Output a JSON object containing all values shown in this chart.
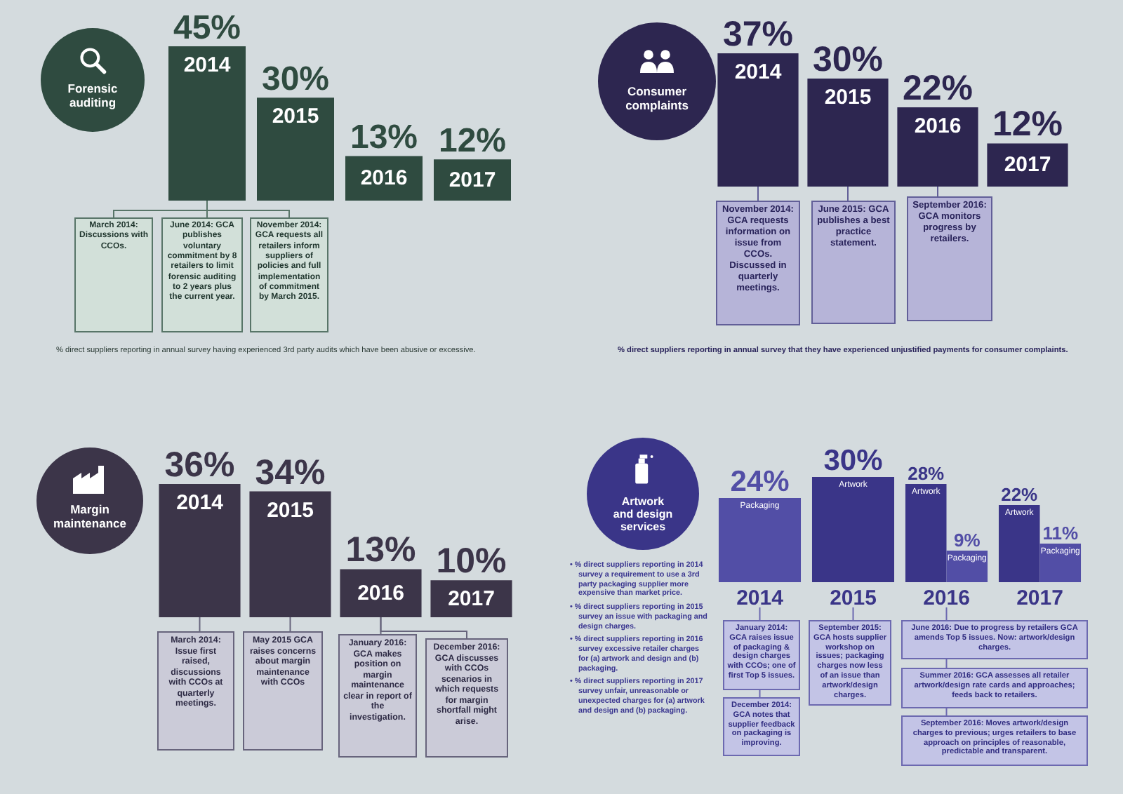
{
  "chart_data": [
    {
      "type": "bar",
      "title": "Forensic auditing",
      "categories": [
        "2014",
        "2015",
        "2016",
        "2017"
      ],
      "values": [
        45,
        30,
        13,
        12
      ],
      "value_labels": [
        "45%",
        "30%",
        "13%",
        "12%"
      ],
      "color": "#2f4b40",
      "tick_labels": "x",
      "annotations": [
        "March 2014: Discussions with CCOs.",
        "June 2014: GCA publishes voluntary commitment by 8 retailers to limit forensic auditing to 2 years plus the current year.",
        "November 2014: GCA requests all retailers inform suppliers of policies and full implementation of commitment by March 2015.",
        "% direct suppliers reporting in annual survey having experienced 3rd party audits which have been abusive or excessive."
      ]
    },
    {
      "type": "bar",
      "title": "Consumer complaints",
      "categories": [
        "2014",
        "2015",
        "2016",
        "2017"
      ],
      "values": [
        37,
        30,
        22,
        12
      ],
      "value_labels": [
        "37%",
        "30%",
        "22%",
        "12%"
      ],
      "color": "#2d2650",
      "tick_labels": "x",
      "annotations": [
        "November 2014: GCA requests information on issue from CCOs. Discussed in quarterly meetings.",
        "June 2015: GCA publishes a best practice statement.",
        "September 2016: GCA monitors progress by retailers.",
        "% direct suppliers reporting in annual survey that they have experienced unjustified payments for consumer complaints."
      ]
    },
    {
      "type": "bar",
      "title": "Margin maintenance",
      "categories": [
        "2014",
        "2015",
        "2016",
        "2017"
      ],
      "values": [
        36,
        34,
        13,
        10
      ],
      "value_labels": [
        "36%",
        "34%",
        "13%",
        "10%"
      ],
      "color": "#3c3549",
      "tick_labels": "x",
      "annotations": [
        "March 2014: Issue first raised, discussions with CCOs at quarterly meetings.",
        "May 2015 GCA raises concerns about margin maintenance with CCOs",
        "January 2016: GCA makes position on margin maintenance clear in report of the investigation.",
        "December 2016: GCA discusses with CCOs scenarios in which requests for margin shortfall might arise."
      ]
    },
    {
      "type": "bar",
      "title": "Artwork and design services",
      "categories": [
        "2014",
        "2015",
        "2016",
        "2017"
      ],
      "tick_labels": "x",
      "series": [
        {
          "name": "Artwork",
          "color": "#3a3588",
          "values": [
            null,
            30,
            28,
            22
          ],
          "value_labels": [
            null,
            "30%",
            "28%",
            "22%"
          ]
        },
        {
          "name": "Packaging",
          "color": "#524ea6",
          "values": [
            24,
            null,
            9,
            11
          ],
          "value_labels": [
            "24%",
            null,
            "9%",
            "11%"
          ]
        }
      ],
      "annotations": [
        "• % direct suppliers reporting in 2014 survey a requirement to use a 3rd party packaging supplier more expensive than market price.",
        "• % direct suppliers reporting in 2015 survey an issue with packaging and design charges.",
        "• % direct suppliers reporting in 2016 survey excessive retailer charges for (a) artwork and design and (b) packaging.",
        "• % direct suppliers reporting in 2017 survey unfair, unreasonable or unexpected charges for (a) artwork and design and (b) packaging.",
        "January 2014: GCA raises issue of packaging & design charges with CCOs; one of first Top 5 issues.",
        "December 2014: GCA notes that supplier feedback on packaging is improving.",
        "September 2015: GCA hosts supplier workshop on issues; packaging charges now less of an issue than artwork/design charges.",
        "June 2016: Due to progress by retailers GCA amends Top 5 issues. Now: artwork/design charges.",
        "Summer 2016: GCA assesses all retailer artwork/design rate cards and approaches; feeds back to retailers.",
        "September 2016: Moves artwork/design charges to previous; urges retailers to base approach on principles of reasonable, predictable and transparent."
      ]
    }
  ]
}
